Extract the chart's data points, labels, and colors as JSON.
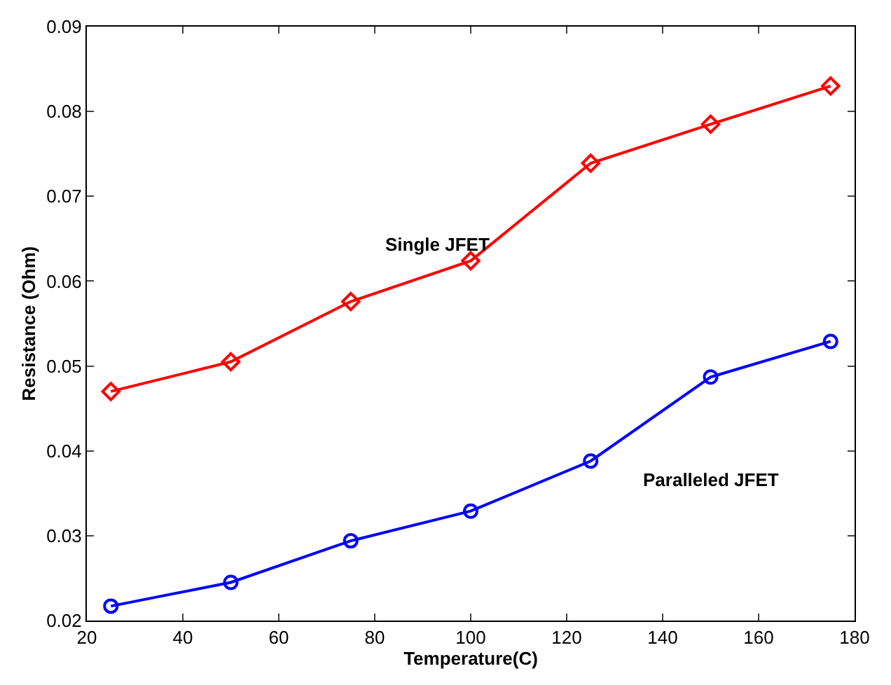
{
  "chart_data": {
    "type": "line",
    "xlabel": "Temperature(C)",
    "ylabel": "Resistance (Ohm)",
    "x": [
      25,
      50,
      75,
      100,
      125,
      150,
      175
    ],
    "series": [
      {
        "name": "Single JFET",
        "color": "#ff0000",
        "marker": "diamond",
        "values": [
          0.047,
          0.0505,
          0.0576,
          0.0624,
          0.0739,
          0.0785,
          0.083
        ]
      },
      {
        "name": "Paralleled JFET",
        "color": "#0000ff",
        "marker": "circle",
        "values": [
          0.0217,
          0.0245,
          0.0294,
          0.0329,
          0.0388,
          0.0487,
          0.0529
        ]
      }
    ],
    "xlim": [
      20,
      180
    ],
    "xticks": [
      20,
      40,
      60,
      80,
      100,
      120,
      140,
      160,
      180
    ],
    "ylim": [
      0.02,
      0.09
    ],
    "yticks": [
      0.02,
      0.03,
      0.04,
      0.05,
      0.06,
      0.07,
      0.08,
      0.09
    ],
    "legend": false,
    "line_style": "solid"
  }
}
